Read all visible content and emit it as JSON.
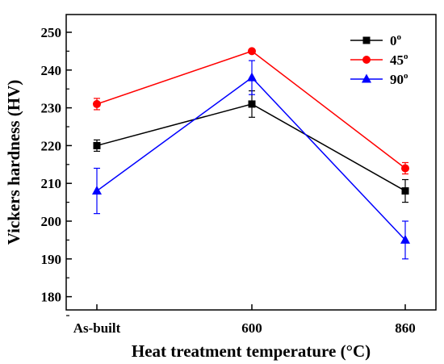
{
  "chart_data": {
    "type": "line",
    "xlabel": "Heat treatment temperature (°C)",
    "ylabel": "Vickers hardness (HV)",
    "categories": [
      "As-built",
      "600",
      "860"
    ],
    "ylim": [
      170,
      255
    ],
    "yticks": [
      180,
      190,
      200,
      210,
      220,
      230,
      240,
      250
    ],
    "legend_position": "top-right",
    "grid": false,
    "series": [
      {
        "name": "0",
        "name_sup": "o",
        "color": "#000000",
        "marker": "square",
        "values": [
          220,
          231,
          208
        ],
        "errors": [
          1.5,
          3.5,
          3
        ]
      },
      {
        "name": "45",
        "name_sup": "o",
        "color": "#ff0000",
        "marker": "circle",
        "values": [
          231,
          245,
          214
        ],
        "errors": [
          1.5,
          0.5,
          1.5
        ]
      },
      {
        "name": "90",
        "name_sup": "o",
        "color": "#0000ff",
        "marker": "triangle",
        "values": [
          208,
          238,
          195
        ],
        "errors": [
          6,
          4.5,
          5
        ]
      }
    ]
  }
}
